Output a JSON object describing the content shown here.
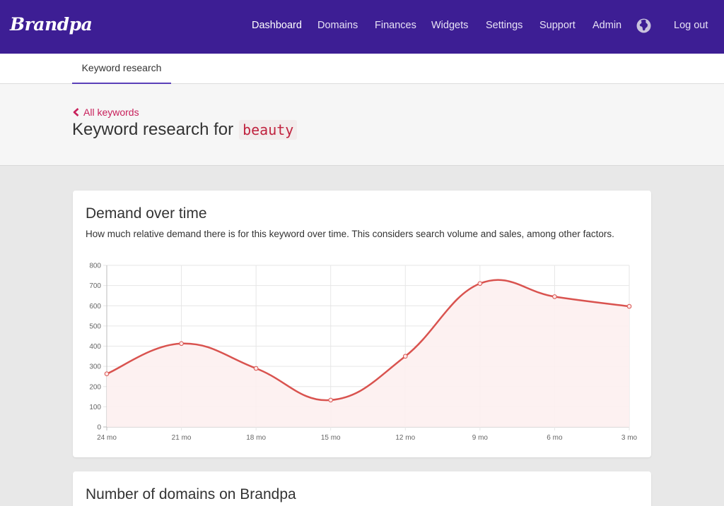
{
  "app": {
    "logo": "Brandpa"
  },
  "nav": {
    "items": [
      {
        "label": "Dashboard",
        "active": true
      },
      {
        "label": "Domains"
      },
      {
        "label": "Finances"
      },
      {
        "label": "Widgets"
      },
      {
        "label": "Settings"
      },
      {
        "label": "Support"
      },
      {
        "label": "Admin"
      }
    ],
    "globe_icon": "globe-icon",
    "logout": "Log out"
  },
  "tabs": [
    {
      "label": "Keyword research",
      "active": true
    }
  ],
  "header": {
    "back_icon": "chevron-left-icon",
    "back_label": "All keywords",
    "title_prefix": "Keyword research for",
    "keyword": "beauty"
  },
  "cards": {
    "demand": {
      "title": "Demand over time",
      "description": "How much relative demand there is for this keyword over time. This considers search volume and sales, among other factors."
    },
    "domains": {
      "title": "Number of domains on Brandpa"
    }
  },
  "colors": {
    "topbar": "#3d1e94",
    "accent": "#c8205b",
    "line": "#d9534f",
    "fill": "#fdf0f0",
    "tab_underline": "#5a3fb8"
  },
  "chart_data": {
    "type": "area",
    "categories": [
      "24 mo",
      "21 mo",
      "18 mo",
      "15 mo",
      "12 mo",
      "9 mo",
      "6 mo",
      "3 mo"
    ],
    "series": [
      {
        "values": [
          263,
          413,
          290,
          133,
          350,
          710,
          645,
          597
        ]
      }
    ],
    "ylim": [
      0,
      800
    ],
    "yticks": [
      0,
      100,
      200,
      300,
      400,
      500,
      600,
      700,
      800
    ],
    "grid": true,
    "legend": "none"
  }
}
